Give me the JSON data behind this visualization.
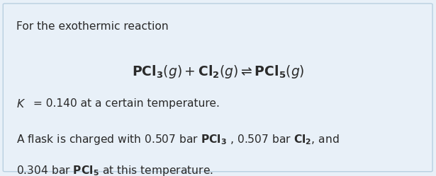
{
  "bg_color": "#e8f0f8",
  "border_color": "#b8cfe0",
  "text_color": "#2a2a2a",
  "figsize": [
    6.15,
    2.49
  ],
  "dpi": 100,
  "line1": "For the exothermic reaction",
  "line2_latex": "$\\mathbf{PCl_3}(g) + \\mathbf{Cl_2}(g) \\rightleftharpoons \\mathbf{PCl_5}(g)$",
  "line3_rest": " = 0.140 at a certain temperature.",
  "line4": "A flask is charged with 0.507 bar $\\mathbf{PCl_3}$ , 0.507 bar $\\mathbf{Cl_2}$, and",
  "line5": "0.304 bar $\\mathbf{PCl_5}$ at this temperature."
}
